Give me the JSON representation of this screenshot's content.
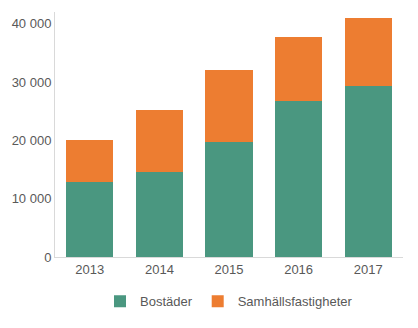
{
  "chart_data": {
    "type": "bar",
    "stacked": true,
    "grid": false,
    "legend": "bottom",
    "categories": [
      "2013",
      "2014",
      "2015",
      "2016",
      "2017"
    ],
    "series": [
      {
        "name": "Bostäder",
        "color": "#4a9780",
        "values": [
          12800,
          14600,
          19800,
          26800,
          29400
        ]
      },
      {
        "name": "Samhällsfastigheter",
        "color": "#ed7d31",
        "values": [
          7200,
          10600,
          12200,
          11000,
          11600
        ]
      }
    ],
    "ylim": [
      0,
      42000
    ],
    "yticks": [
      0,
      {
        "value": 10000,
        "label": "10 000"
      },
      {
        "value": 20000,
        "label": "20 000"
      },
      {
        "value": 30000,
        "label": "30 000"
      },
      {
        "value": 40000,
        "label": "40 000"
      }
    ]
  }
}
